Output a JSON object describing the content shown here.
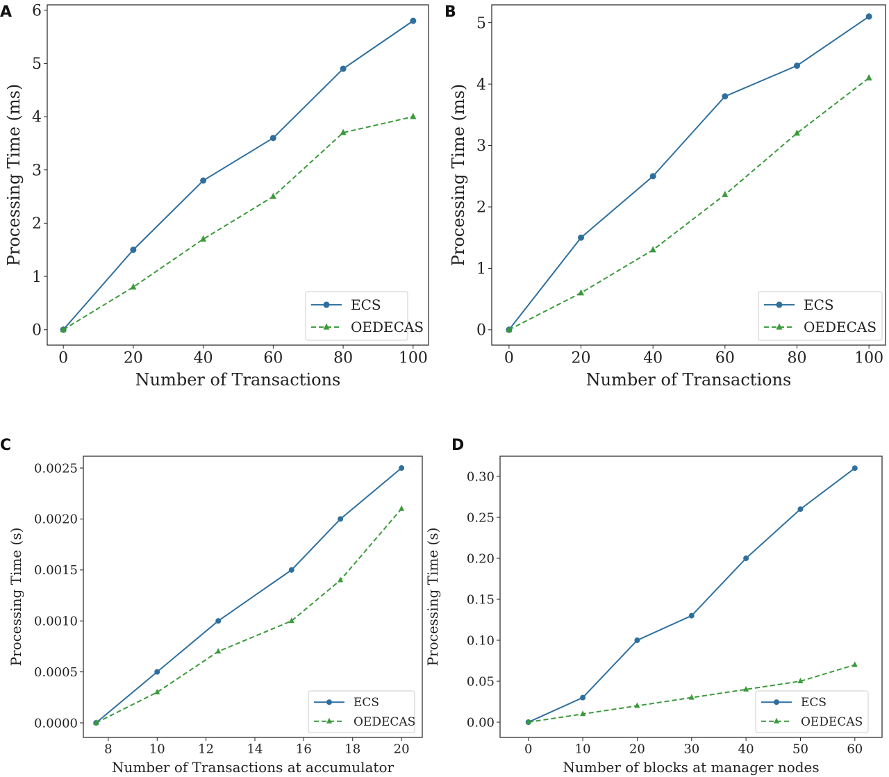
{
  "colors": {
    "ECS": "#2e6f9e",
    "OEDECAS": "#3a9a3a"
  },
  "chart_data": [
    {
      "panel": "A",
      "type": "line",
      "xlabel": "Number of Transactions",
      "ylabel": "Processing Time (ms)",
      "xlim": [
        -4.6,
        104.4
      ],
      "ylim": [
        -0.29,
        6.1
      ],
      "xticks": [
        0,
        20,
        40,
        60,
        80,
        100
      ],
      "xtick_labels": [
        "0",
        "20",
        "40",
        "60",
        "80",
        "100"
      ],
      "yticks": [
        0,
        1,
        2,
        3,
        4,
        5,
        6
      ],
      "ytick_labels": [
        "0",
        "1",
        "2",
        "3",
        "4",
        "5",
        "6"
      ],
      "legend": "bottom-right",
      "grid": false,
      "x": [
        0,
        20,
        40,
        60,
        80,
        100
      ],
      "series": [
        {
          "name": "ECS",
          "values": [
            0,
            1.5,
            2.8,
            3.6,
            4.9,
            5.8
          ],
          "marker": "circle",
          "style": "solid"
        },
        {
          "name": "OEDECAS",
          "values": [
            0,
            0.8,
            1.7,
            2.5,
            3.7,
            4.0
          ],
          "marker": "triangle",
          "style": "dashed"
        }
      ]
    },
    {
      "panel": "B",
      "type": "line",
      "xlabel": "Number of Transactions",
      "ylabel": "Processing Time (ms)",
      "xlim": [
        -4.8,
        104.6
      ],
      "ylim": [
        -0.25,
        5.29
      ],
      "xticks": [
        0,
        20,
        40,
        60,
        80,
        100
      ],
      "xtick_labels": [
        "0",
        "20",
        "40",
        "60",
        "80",
        "100"
      ],
      "yticks": [
        0,
        1,
        2,
        3,
        4,
        5
      ],
      "ytick_labels": [
        "0",
        "1",
        "2",
        "3",
        "4",
        "5"
      ],
      "legend": "bottom-right",
      "grid": false,
      "x": [
        0,
        20,
        40,
        60,
        80,
        100
      ],
      "series": [
        {
          "name": "ECS",
          "values": [
            0,
            1.5,
            2.5,
            3.8,
            4.3,
            5.1
          ],
          "marker": "circle",
          "style": "solid"
        },
        {
          "name": "OEDECAS",
          "values": [
            0,
            0.6,
            1.3,
            2.2,
            3.2,
            4.1
          ],
          "marker": "triangle",
          "style": "dashed"
        }
      ]
    },
    {
      "panel": "C",
      "type": "line",
      "xlabel": "Number of Transactions at accumulator",
      "ylabel": "Processing Time (s)",
      "xlim": [
        6.98,
        20.85
      ],
      "ylim": [
        -0.000143,
        0.002616
      ],
      "xticks": [
        8,
        10,
        12,
        14,
        16,
        18,
        20
      ],
      "xtick_labels": [
        "8",
        "10",
        "12",
        "14",
        "16",
        "18",
        "20"
      ],
      "yticks": [
        0,
        0.0005,
        0.001,
        0.0015,
        0.002,
        0.0025
      ],
      "ytick_labels": [
        "0.0000",
        "0.0005",
        "0.0010",
        "0.0015",
        "0.0020",
        "0.0025"
      ],
      "legend": "bottom-right",
      "grid": false,
      "x": [
        7.5,
        10,
        12.5,
        15.5,
        17.5,
        20
      ],
      "series": [
        {
          "name": "ECS",
          "values": [
            0,
            0.0005,
            0.001,
            0.0015,
            0.002,
            0.0025
          ],
          "marker": "circle",
          "style": "solid"
        },
        {
          "name": "OEDECAS",
          "values": [
            0,
            0.0003,
            0.0007,
            0.001,
            0.0014,
            0.0021
          ],
          "marker": "triangle",
          "style": "dashed"
        }
      ]
    },
    {
      "panel": "D",
      "type": "line",
      "xlabel": "Number of blocks at manager nodes",
      "ylabel": "Processing Time (s)",
      "xlim": [
        -5.2,
        65.0
      ],
      "ylim": [
        -0.0186,
        0.3246
      ],
      "xticks": [
        0,
        10,
        20,
        30,
        40,
        50,
        60
      ],
      "xtick_labels": [
        "0",
        "10",
        "20",
        "30",
        "40",
        "50",
        "60"
      ],
      "yticks": [
        0,
        0.05,
        0.1,
        0.15,
        0.2,
        0.25,
        0.3
      ],
      "ytick_labels": [
        "0.00",
        "0.05",
        "0.10",
        "0.15",
        "0.20",
        "0.25",
        "0.30"
      ],
      "legend": "bottom-right",
      "grid": false,
      "x": [
        0,
        10,
        20,
        30,
        40,
        50,
        60
      ],
      "series": [
        {
          "name": "ECS",
          "values": [
            0,
            0.03,
            0.1,
            0.13,
            0.2,
            0.26,
            0.31
          ],
          "marker": "circle",
          "style": "solid"
        },
        {
          "name": "OEDECAS",
          "values": [
            0,
            0.01,
            0.02,
            0.03,
            0.04,
            0.05,
            0.07
          ],
          "marker": "triangle",
          "style": "dashed"
        }
      ]
    }
  ]
}
